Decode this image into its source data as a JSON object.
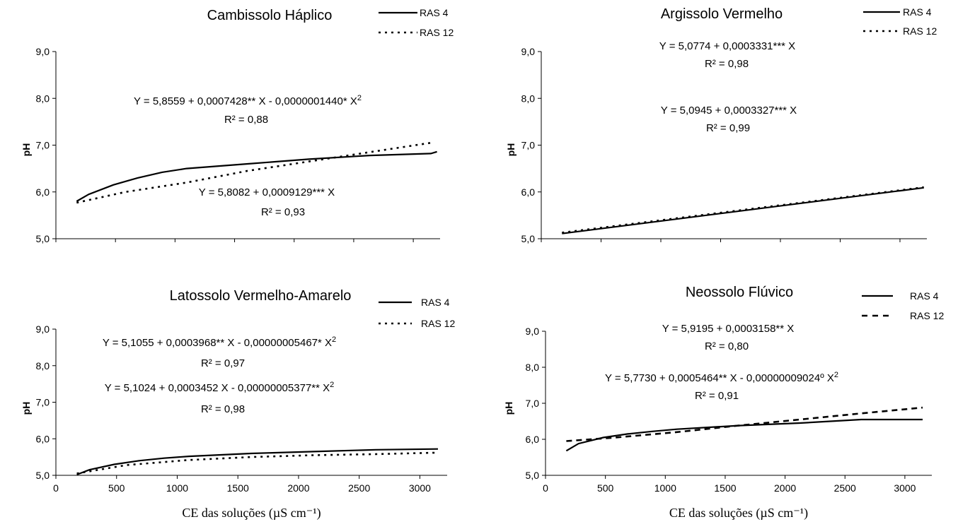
{
  "chart_data": [
    {
      "type": "line",
      "title": "Cambissolo Háplico",
      "ylabel": "pH",
      "xlabel": "",
      "ylim": [
        5,
        9
      ],
      "yticks": [
        "5,0",
        "6,0",
        "7,0",
        "8,0",
        "9,0"
      ],
      "xticks": [],
      "series": [
        {
          "name": "RAS 4",
          "style": "solid",
          "x": [
            100,
            200,
            400,
            600,
            800,
            1000,
            1500,
            2000,
            2500,
            3000,
            3050
          ],
          "y": [
            5.8,
            5.95,
            6.15,
            6.3,
            6.42,
            6.5,
            6.6,
            6.7,
            6.78,
            6.82,
            6.86
          ]
        },
        {
          "name": "RAS 12",
          "style": "dotted",
          "x": [
            100,
            500,
            1000,
            1500,
            2000,
            2500,
            3000
          ],
          "y": [
            5.77,
            6.0,
            6.2,
            6.45,
            6.65,
            6.85,
            7.05
          ]
        }
      ],
      "annotations": [
        {
          "eq": "Y =    5,8559 + 0,0007428** X - 0,0000001440* X",
          "sup": "2",
          "r2": "R² = 0,88"
        },
        {
          "eq": "Y =    5,8082 + 0,0009129*** X",
          "sup": "",
          "r2": "R² = 0,93"
        }
      ]
    },
    {
      "type": "line",
      "title": "Argissolo Vermelho",
      "ylabel": "pH",
      "xlabel": "",
      "ylim": [
        5,
        9
      ],
      "yticks": [
        "5,0",
        "6,0",
        "7,0",
        "8,0",
        "9,0"
      ],
      "xticks": [],
      "series": [
        {
          "name": "RAS 4",
          "style": "solid",
          "x": [
            100,
            3050
          ],
          "y": [
            5.11,
            6.09
          ]
        },
        {
          "name": "RAS 12",
          "style": "dotted",
          "x": [
            100,
            3050
          ],
          "y": [
            5.13,
            6.1
          ]
        }
      ],
      "annotations": [
        {
          "eq": "Y =  5,0774 + 0,0003331*** X",
          "sup": "",
          "r2": "R² = 0,98"
        },
        {
          "eq": "Y =  5,0945 + 0,0003327*** X",
          "sup": "",
          "r2": "R² = 0,99"
        }
      ]
    },
    {
      "type": "line",
      "title": "Latossolo Vermelho-Amarelo",
      "ylabel": "pH",
      "xlabel": "CE das soluções (µS cm⁻¹)",
      "ylim": [
        5,
        9
      ],
      "yticks": [
        "5,0",
        "6,0",
        "7,0",
        "8,0",
        "9,0"
      ],
      "xticks": [
        "0",
        "500",
        "1000",
        "1500",
        "2000",
        "2500",
        "3000"
      ],
      "series": [
        {
          "name": "RAS 4",
          "style": "solid",
          "x": [
            100,
            200,
            400,
            600,
            800,
            1000,
            1500,
            2000,
            2500,
            3000
          ],
          "y": [
            5.02,
            5.15,
            5.3,
            5.4,
            5.47,
            5.52,
            5.6,
            5.65,
            5.7,
            5.72
          ]
        },
        {
          "name": "RAS 12",
          "style": "dotted",
          "x": [
            100,
            500,
            1000,
            1500,
            2000,
            2500,
            3000
          ],
          "y": [
            5.05,
            5.28,
            5.42,
            5.5,
            5.55,
            5.58,
            5.62
          ]
        }
      ],
      "annotations": [
        {
          "eq": "Y =  5,1055 + 0,0003968** X - 0,00000005467* X",
          "sup": "2",
          "r2": "R² = 0,97"
        },
        {
          "eq": "Y =  5,1024 + 0,0003452 X - 0,00000005377** X",
          "sup": "2",
          "r2": "R² = 0,98"
        }
      ]
    },
    {
      "type": "line",
      "title": "Neossolo Flúvico",
      "ylabel": "pH",
      "xlabel": "CE das soluções (µS cm⁻¹)",
      "ylim": [
        5,
        9
      ],
      "yticks": [
        "5,0",
        "6,0",
        "7,0",
        "8,0",
        "9,0"
      ],
      "xticks": [
        "0",
        "500",
        "1000",
        "1500",
        "2000",
        "2500",
        "3000"
      ],
      "series": [
        {
          "name": "RAS 4",
          "style": "solid",
          "x": [
            100,
            200,
            400,
            600,
            800,
            1000,
            1500,
            2000,
            2500,
            3000
          ],
          "y": [
            5.68,
            5.88,
            6.05,
            6.15,
            6.22,
            6.28,
            6.38,
            6.45,
            6.55,
            6.55
          ]
        },
        {
          "name": "RAS 12",
          "style": "dashed",
          "x": [
            100,
            500,
            1000,
            1500,
            2000,
            2500,
            3000
          ],
          "y": [
            5.95,
            6.05,
            6.2,
            6.38,
            6.55,
            6.72,
            6.88
          ]
        }
      ],
      "annotations": [
        {
          "eq": "Y =   5,9195 + 0,0003158** X",
          "sup": "",
          "r2": "R² = 0,80"
        },
        {
          "eq": "Y =  5,7730 + 0,0005464** X - 0,00000009024º X",
          "sup": "2",
          "r2": "R² = 0,91"
        }
      ]
    }
  ]
}
